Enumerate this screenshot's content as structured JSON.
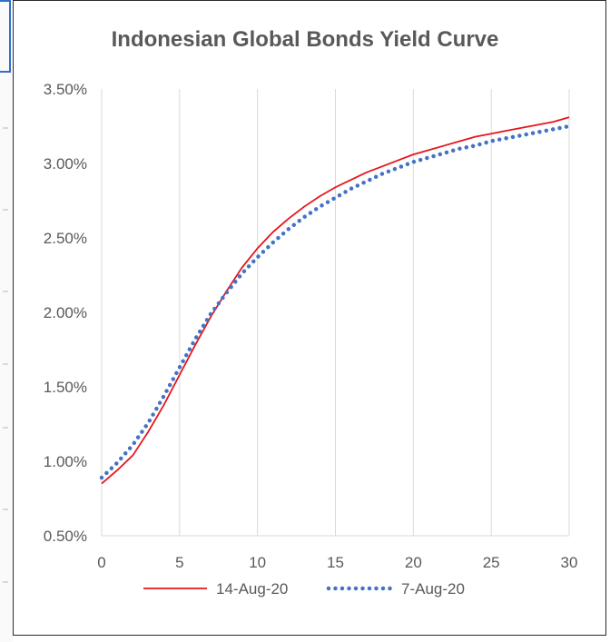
{
  "chart_data": {
    "type": "line",
    "title": "Indonesian Global Bonds Yield Curve",
    "xlim": [
      0,
      30
    ],
    "ylim": [
      0.5,
      3.5
    ],
    "x_ticks": [
      0,
      5,
      10,
      15,
      20,
      25,
      30
    ],
    "y_ticks": [
      0.5,
      1.0,
      1.5,
      2.0,
      2.5,
      3.0,
      3.5
    ],
    "x_tick_labels": [
      "0",
      "5",
      "10",
      "15",
      "20",
      "25",
      "30"
    ],
    "y_tick_labels": [
      "0.50%",
      "1.00%",
      "1.50%",
      "2.00%",
      "2.50%",
      "3.00%",
      "3.50%"
    ],
    "grid": "vertical",
    "legend_position": "bottom",
    "series": [
      {
        "name": "14-Aug-20",
        "color": "#e8141b",
        "style": "solid",
        "x": [
          0,
          1,
          2,
          3,
          4,
          5,
          6,
          7,
          8,
          9,
          10,
          11,
          12,
          13,
          14,
          15,
          16,
          17,
          18,
          19,
          20,
          21,
          22,
          23,
          24,
          25,
          26,
          27,
          28,
          29,
          30
        ],
        "y": [
          0.85,
          0.94,
          1.04,
          1.2,
          1.38,
          1.58,
          1.78,
          1.97,
          2.14,
          2.3,
          2.43,
          2.54,
          2.63,
          2.71,
          2.78,
          2.84,
          2.89,
          2.94,
          2.98,
          3.02,
          3.06,
          3.09,
          3.12,
          3.15,
          3.18,
          3.2,
          3.22,
          3.24,
          3.26,
          3.28,
          3.31
        ]
      },
      {
        "name": "7-Aug-20",
        "color": "#4472c4",
        "style": "dotted",
        "x": [
          0,
          1,
          2,
          3,
          4,
          5,
          6,
          7,
          8,
          9,
          10,
          11,
          12,
          13,
          14,
          15,
          16,
          17,
          18,
          19,
          20,
          21,
          22,
          23,
          24,
          25,
          26,
          27,
          28,
          29,
          30
        ],
        "y": [
          0.89,
          0.99,
          1.11,
          1.26,
          1.44,
          1.63,
          1.82,
          1.99,
          2.13,
          2.26,
          2.37,
          2.47,
          2.56,
          2.64,
          2.71,
          2.77,
          2.83,
          2.88,
          2.93,
          2.97,
          3.01,
          3.04,
          3.07,
          3.1,
          3.12,
          3.15,
          3.17,
          3.19,
          3.21,
          3.23,
          3.25
        ]
      }
    ]
  }
}
